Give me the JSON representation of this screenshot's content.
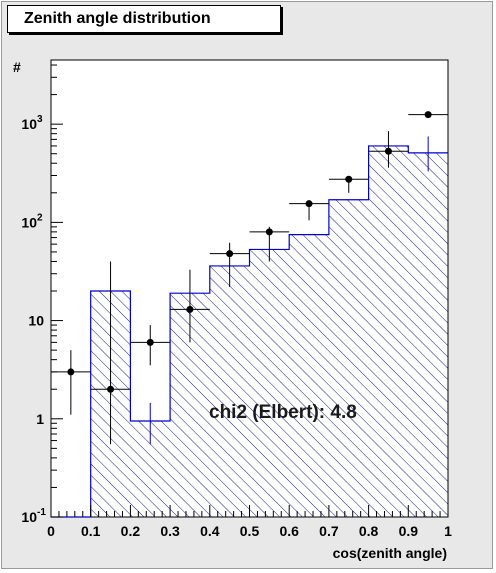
{
  "chart_data": {
    "type": "histogram",
    "title": "Zenith angle distribution",
    "xlabel": "cos(zenith angle)",
    "ylabel": "#",
    "xlim": [
      0,
      1
    ],
    "ylim": [
      0.1,
      4500
    ],
    "y_scale": "log",
    "x_ticks": [
      "0",
      "0.1",
      "0.2",
      "0.3",
      "0.4",
      "0.5",
      "0.6",
      "0.7",
      "0.8",
      "0.9",
      "1"
    ],
    "y_tick_labels": [
      {
        "value": 0.1,
        "base": "10",
        "exp": "-1"
      },
      {
        "value": 1,
        "base": "1",
        "exp": ""
      },
      {
        "value": 10,
        "base": "10",
        "exp": ""
      },
      {
        "value": 100,
        "base": "10",
        "exp": "2"
      },
      {
        "value": 1000,
        "base": "10",
        "exp": "3"
      }
    ],
    "bin_edges": [
      0,
      0.1,
      0.2,
      0.3,
      0.4,
      0.5,
      0.6,
      0.7,
      0.8,
      0.9,
      1.0
    ],
    "series": [
      {
        "kind": "expected-histogram",
        "values": [
          0.1,
          20,
          0.95,
          19,
          36,
          53,
          75,
          170,
          600,
          510
        ],
        "errors_low": [
          0,
          0,
          0.4,
          0,
          0,
          0,
          0,
          0,
          0,
          180
        ],
        "errors_high": [
          0,
          0,
          0.5,
          0,
          0,
          0,
          0,
          0,
          0,
          240
        ],
        "line_color": "#0000cc",
        "fill": "hatched"
      },
      {
        "kind": "data-points",
        "x": [
          0.05,
          0.15,
          0.25,
          0.35,
          0.45,
          0.55,
          0.65,
          0.75,
          0.85,
          0.95
        ],
        "y": [
          3.0,
          2.0,
          6.0,
          13,
          48,
          80,
          155,
          275,
          530,
          1250
        ],
        "y_low": [
          1.1,
          0.55,
          3.5,
          6,
          22,
          40,
          105,
          200,
          360,
          1250
        ],
        "y_high": [
          5.0,
          40,
          9,
          33,
          62,
          90,
          160,
          285,
          850,
          1250
        ],
        "marker_color": "#000000"
      }
    ],
    "annotations": [
      "chi2 (Elbert): 4.8"
    ]
  }
}
